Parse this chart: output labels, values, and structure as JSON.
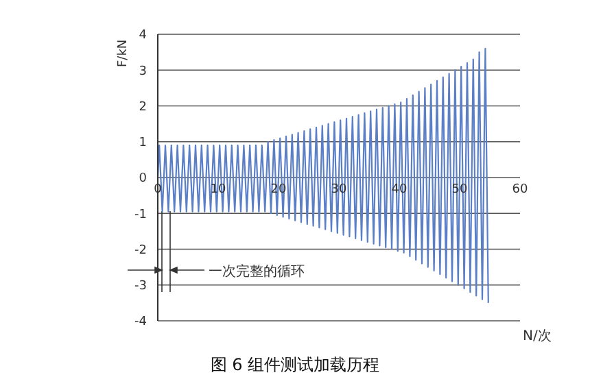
{
  "chart_data": {
    "type": "line",
    "title": "图 6 组件测试加载历程",
    "xlabel": "N/次",
    "ylabel": "F/kN",
    "annotations": [
      "一次完整的循环"
    ],
    "xlim": [
      0,
      60
    ],
    "xticks": [
      0,
      10,
      20,
      30,
      40,
      50,
      60
    ],
    "ylim": [
      -4,
      4
    ],
    "yticks": [
      -4,
      -3,
      -2,
      -1,
      0,
      1,
      2,
      3,
      4
    ],
    "grid": "y",
    "marker": "none",
    "line_style": "solid",
    "series": [
      {
        "color": "#5b7fc7",
        "x": [
          0,
          0.25,
          0.75,
          1.25,
          1.75,
          2.25,
          2.75,
          3.25,
          3.75,
          4.25,
          4.75,
          5.25,
          5.75,
          6.25,
          6.75,
          7.25,
          7.75,
          8.25,
          8.75,
          9.25,
          9.75,
          10.25,
          10.75,
          11.25,
          11.75,
          12.25,
          12.75,
          13.25,
          13.75,
          14.25,
          14.75,
          15.25,
          15.75,
          16.25,
          16.75,
          17.25,
          17.75,
          18.25,
          18.75,
          19.25,
          19.75,
          20.25,
          20.75,
          21.25,
          21.75,
          22.25,
          22.75,
          23.25,
          23.75,
          24.25,
          24.75,
          25.25,
          25.75,
          26.25,
          26.75,
          27.25,
          27.75,
          28.25,
          28.75,
          29.25,
          29.75,
          30.25,
          30.75,
          31.25,
          31.75,
          32.25,
          32.75,
          33.25,
          33.75,
          34.25,
          34.75,
          35.25,
          35.75,
          36.25,
          36.75,
          37.25,
          37.75,
          38.25,
          38.75,
          39.25,
          39.75,
          40.25,
          40.75,
          41.25,
          41.75,
          42.25,
          42.75,
          43.25,
          43.75,
          44.25,
          44.75,
          45.25,
          45.75,
          46.25,
          46.75,
          47.25,
          47.75,
          48.25,
          48.75,
          49.25,
          49.75,
          50.25,
          50.75,
          51.25,
          51.75,
          52.25,
          52.75,
          53.25,
          53.75,
          54.25,
          54.75
        ],
        "values": [
          0,
          0.9,
          -0.95,
          0.9,
          -0.95,
          0.9,
          -0.95,
          0.9,
          -0.95,
          0.9,
          -0.95,
          0.9,
          -0.95,
          0.9,
          -0.95,
          0.9,
          -0.95,
          0.9,
          -0.95,
          0.9,
          -0.95,
          0.9,
          -0.95,
          0.9,
          -0.95,
          0.9,
          -0.95,
          0.9,
          -0.95,
          0.9,
          -0.95,
          0.9,
          -0.95,
          0.9,
          -0.95,
          0.9,
          -0.95,
          1.0,
          -1.0,
          1.05,
          -1.05,
          1.1,
          -1.1,
          1.15,
          -1.15,
          1.2,
          -1.2,
          1.25,
          -1.25,
          1.3,
          -1.3,
          1.35,
          -1.35,
          1.4,
          -1.4,
          1.45,
          -1.45,
          1.5,
          -1.5,
          1.55,
          -1.55,
          1.6,
          -1.6,
          1.65,
          -1.65,
          1.7,
          -1.7,
          1.75,
          -1.75,
          1.8,
          -1.8,
          1.85,
          -1.85,
          1.9,
          -1.9,
          1.95,
          -1.95,
          2.0,
          -2.0,
          2.05,
          -2.05,
          2.1,
          -2.1,
          2.2,
          -2.2,
          2.3,
          -2.3,
          2.4,
          -2.4,
          2.5,
          -2.5,
          2.6,
          -2.6,
          2.7,
          -2.7,
          2.8,
          -2.8,
          2.9,
          -2.9,
          3.0,
          -3.0,
          3.1,
          -3.1,
          3.2,
          -3.2,
          3.3,
          -3.3,
          3.5,
          -3.4,
          3.6,
          -3.5
        ]
      }
    ]
  }
}
